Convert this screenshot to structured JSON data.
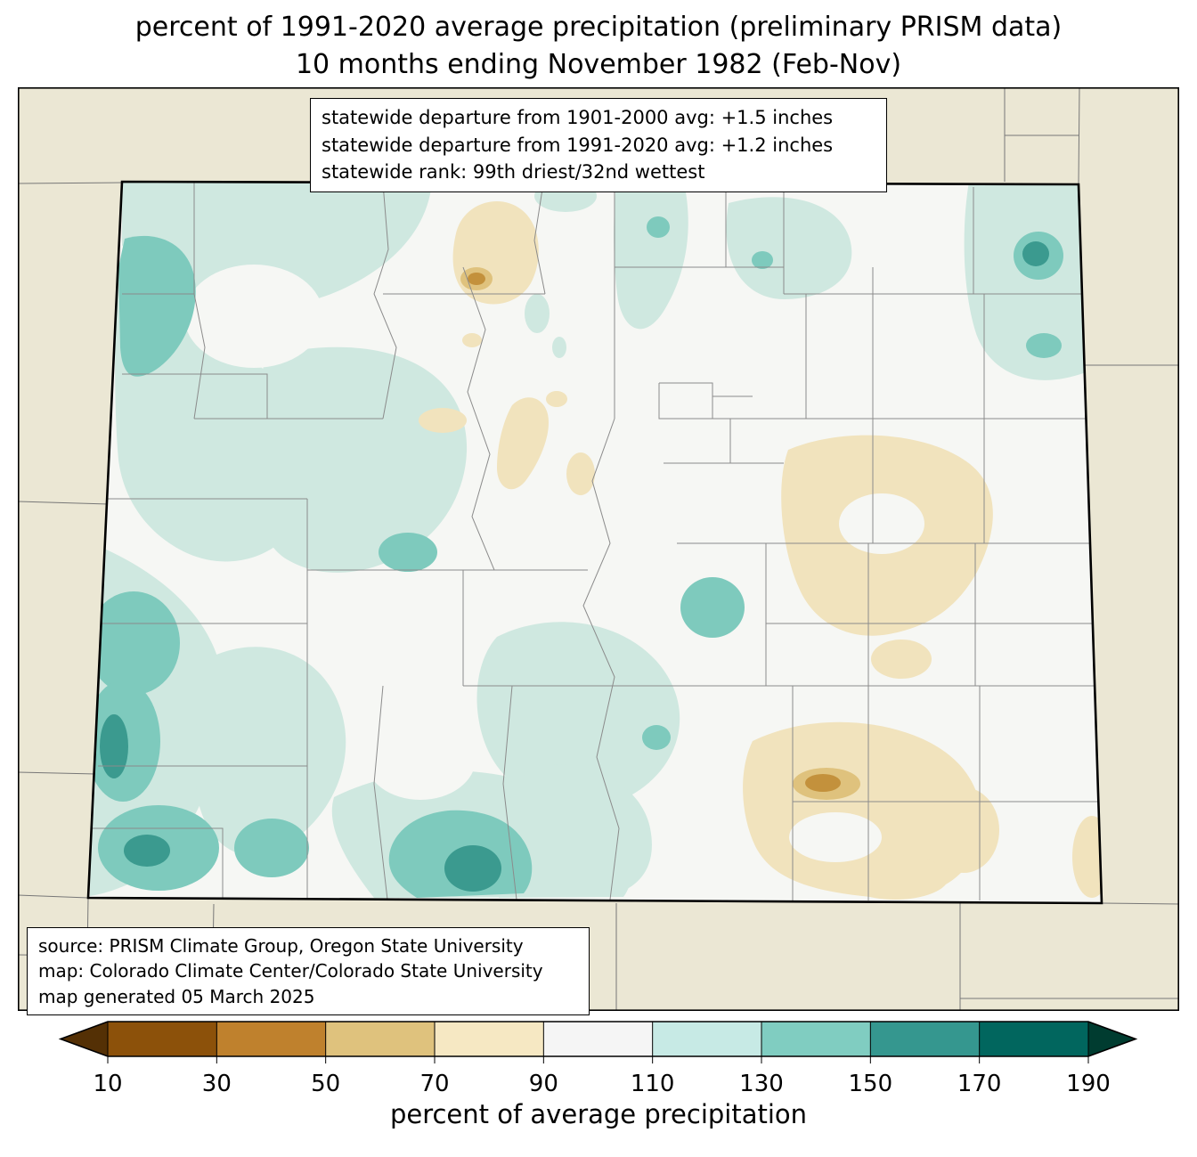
{
  "title": {
    "line1": "percent of 1991-2020 average precipitation (preliminary PRISM data)",
    "line2": "10 months ending November 1982 (Feb-Nov)"
  },
  "stats_box": {
    "lines": [
      "statewide departure from 1901-2000 avg: +1.5 inches",
      "statewide departure from 1991-2020 avg: +1.2 inches",
      "statewide rank: 99th driest/32nd wettest"
    ]
  },
  "source_box": {
    "lines": [
      "source: PRISM Climate Group, Oregon State University",
      "map: Colorado Climate Center/Colorado State University",
      "map generated 05 March 2025"
    ]
  },
  "colorbar": {
    "label": "percent of average precipitation",
    "ticks": [
      "10",
      "30",
      "50",
      "70",
      "90",
      "110",
      "130",
      "150",
      "170",
      "190"
    ],
    "segment_colors": [
      "#8c510a",
      "#bf812d",
      "#dfc27d",
      "#f6e8c3",
      "#f5f5f5",
      "#c7eae5",
      "#80cdc1",
      "#35978f",
      "#01665e"
    ],
    "under_arrow_color": "#543005",
    "over_arrow_color": "#003c30"
  },
  "map": {
    "colors": {
      "background": "#ebe7d4",
      "state_fill": "#f6f7f4",
      "teal_light": "#cfe8e0",
      "teal_mid": "#7ecabd",
      "teal_dark": "#3b9a8f",
      "tan_light": "#f1e3bd",
      "tan_mid": "#dfc27d",
      "tan_dark": "#c3913c",
      "county_line": "#8b8b8b",
      "state_line": "#777777",
      "border": "#000000"
    }
  }
}
